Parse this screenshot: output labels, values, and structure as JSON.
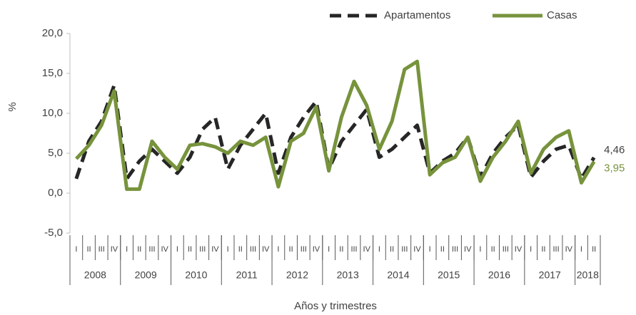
{
  "chart_data": {
    "type": "line",
    "x_label": "Años y trimestres",
    "y_label": "%",
    "categories": [
      "I",
      "II",
      "III",
      "IV",
      "I",
      "II",
      "III",
      "IV",
      "I",
      "II",
      "III",
      "IV",
      "I",
      "II",
      "III",
      "IV",
      "I",
      "II",
      "III",
      "IV",
      "I",
      "II",
      "III",
      "IV",
      "I",
      "II",
      "III",
      "IV",
      "I",
      "II",
      "III",
      "IV",
      "I",
      "II",
      "III",
      "IV",
      "I",
      "II",
      "III",
      "IV",
      "I",
      "II"
    ],
    "years": [
      "2008",
      "2009",
      "2010",
      "2011",
      "2012",
      "2013",
      "2014",
      "2015",
      "2016",
      "2017",
      "2018"
    ],
    "series": [
      {
        "name": "Apartamentos",
        "color": "#262626",
        "dash": true,
        "values": [
          1.8,
          6.5,
          9.0,
          13.5,
          1.8,
          4.0,
          5.5,
          4.0,
          2.5,
          4.5,
          8.0,
          9.5,
          3.0,
          6.0,
          8.0,
          10.0,
          2.5,
          7.0,
          9.5,
          11.5,
          3.0,
          6.5,
          8.5,
          10.5,
          4.5,
          5.5,
          7.0,
          8.5,
          2.5,
          4.0,
          5.0,
          7.0,
          2.0,
          5.0,
          7.0,
          8.5,
          2.0,
          4.0,
          5.5,
          6.0,
          1.8,
          4.46
        ],
        "value_labels": [
          null,
          null,
          null,
          null,
          null,
          null,
          null,
          null,
          null,
          null,
          null,
          null,
          null,
          null,
          null,
          null,
          null,
          null,
          null,
          null,
          null,
          null,
          null,
          null,
          null,
          null,
          null,
          null,
          null,
          null,
          null,
          null,
          null,
          null,
          null,
          null,
          null,
          null,
          null,
          null,
          null,
          "4,46"
        ]
      },
      {
        "name": "Casas",
        "color": "#77933c",
        "dash": false,
        "values": [
          4.3,
          6.0,
          8.5,
          12.8,
          0.5,
          0.5,
          6.5,
          4.5,
          3.0,
          6.0,
          6.2,
          5.8,
          5.0,
          6.5,
          6.0,
          7.0,
          0.8,
          6.5,
          7.5,
          10.8,
          2.8,
          9.5,
          14.0,
          11.0,
          5.5,
          9.0,
          15.5,
          16.5,
          2.3,
          3.8,
          4.5,
          7.0,
          1.5,
          4.5,
          6.5,
          9.0,
          2.5,
          5.5,
          7.0,
          7.8,
          1.3,
          3.95
        ],
        "value_labels": [
          null,
          null,
          null,
          null,
          null,
          null,
          null,
          null,
          null,
          null,
          null,
          null,
          null,
          null,
          null,
          null,
          null,
          null,
          null,
          null,
          null,
          null,
          null,
          null,
          null,
          null,
          null,
          null,
          null,
          null,
          null,
          null,
          null,
          null,
          null,
          null,
          null,
          null,
          null,
          null,
          null,
          "3,95"
        ]
      }
    ],
    "ylim": [
      -5,
      20
    ],
    "yticks": [
      {
        "value": -5,
        "label": "-5,0"
      },
      {
        "value": 0,
        "label": "0,0"
      },
      {
        "value": 5,
        "label": "5,0"
      },
      {
        "value": 10,
        "label": "10,0"
      },
      {
        "value": 15,
        "label": "15,0"
      },
      {
        "value": 20,
        "label": "20,0"
      }
    ],
    "legend": "top-right"
  }
}
